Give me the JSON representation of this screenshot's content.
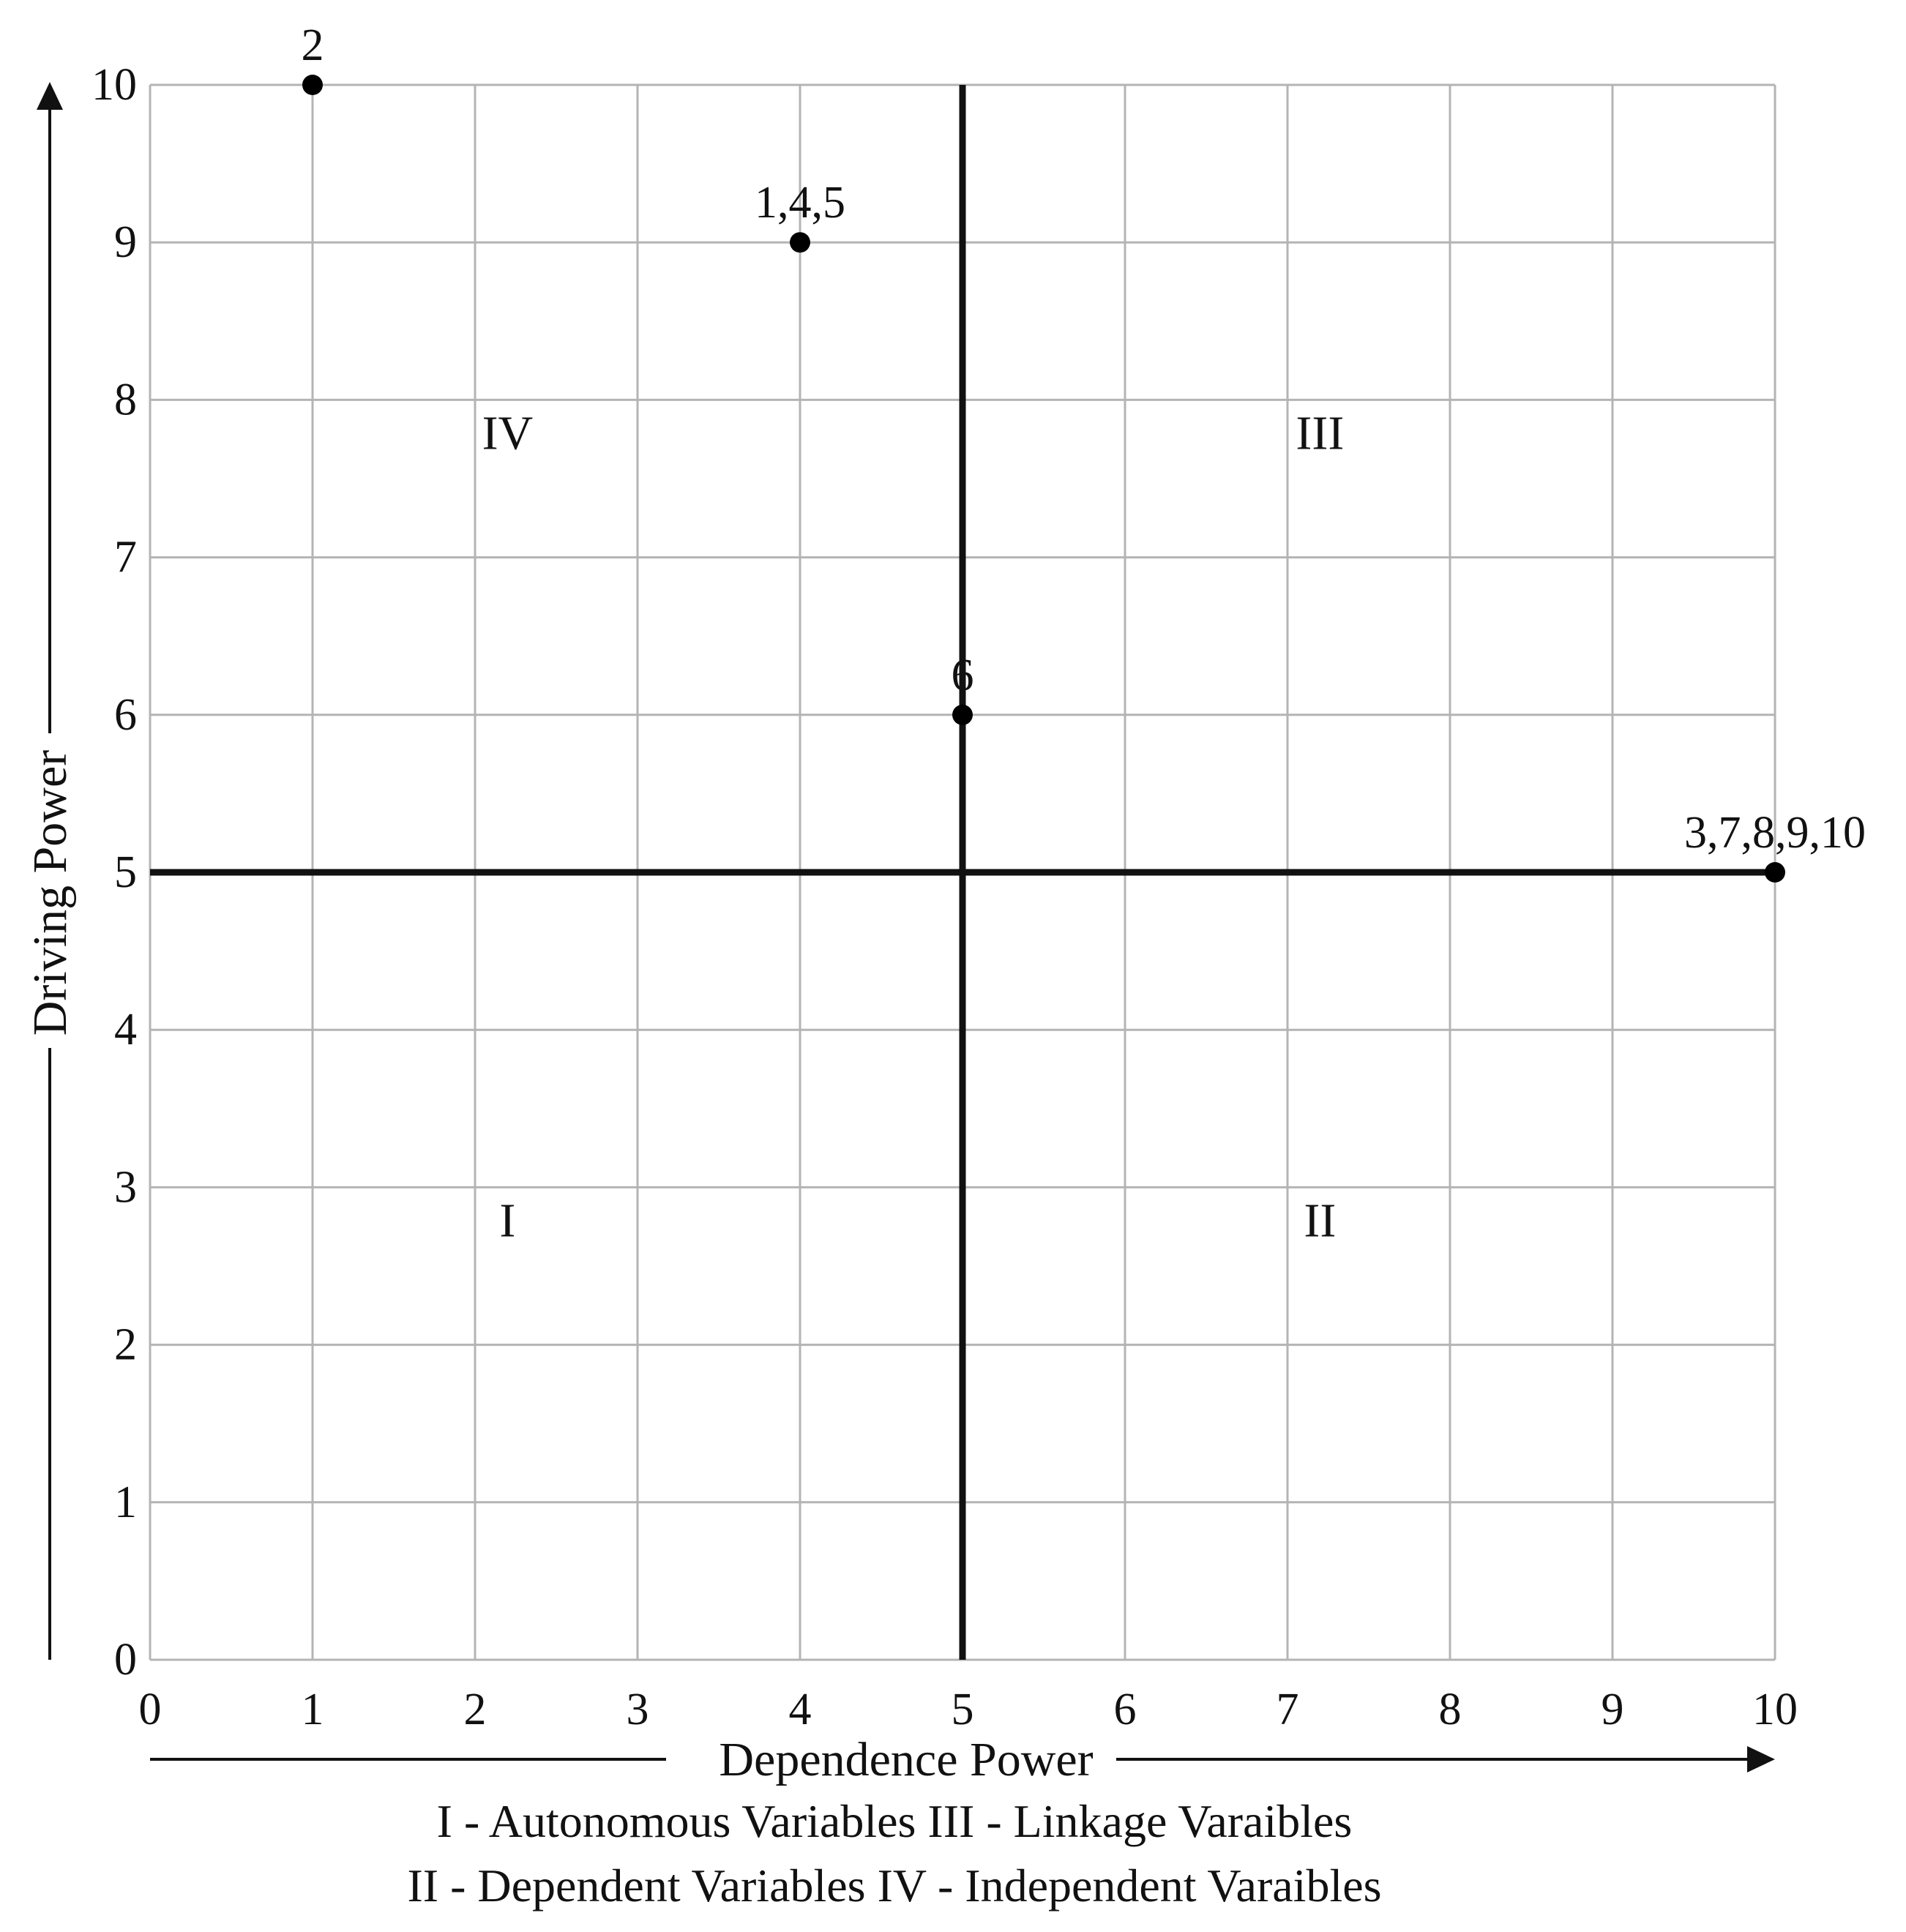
{
  "chart_data": {
    "type": "scatter",
    "xlabel": "Dependence Power",
    "ylabel": "Driving Power",
    "xlim": [
      0,
      10
    ],
    "ylim": [
      0,
      10
    ],
    "x_ticks": [
      0,
      1,
      2,
      3,
      4,
      5,
      6,
      7,
      8,
      9,
      10
    ],
    "y_ticks": [
      0,
      1,
      2,
      3,
      4,
      5,
      6,
      7,
      8,
      9,
      10
    ],
    "grid": true,
    "divider_lines": {
      "x": 5,
      "y": 5
    },
    "points": [
      {
        "x": 1,
        "y": 10,
        "label": "2"
      },
      {
        "x": 4,
        "y": 9,
        "label": "1,4,5"
      },
      {
        "x": 5,
        "y": 6,
        "label": "6"
      },
      {
        "x": 10,
        "y": 5,
        "label": "3,7,8,9,10"
      }
    ],
    "quadrants": [
      {
        "label": "IV",
        "x": 2.2,
        "y": 7.8
      },
      {
        "label": "III",
        "x": 7.2,
        "y": 7.8
      },
      {
        "label": "I",
        "x": 2.2,
        "y": 2.8
      },
      {
        "label": "II",
        "x": 7.2,
        "y": 2.8
      }
    ],
    "legend": [
      "I - Autonomous Variables III - Linkage Varaibles",
      "II - Dependent Variables IV - Independent Varaibles"
    ],
    "colors": {
      "grid": "#b4b4b4",
      "axis": "#111111",
      "points": "#000000"
    }
  }
}
